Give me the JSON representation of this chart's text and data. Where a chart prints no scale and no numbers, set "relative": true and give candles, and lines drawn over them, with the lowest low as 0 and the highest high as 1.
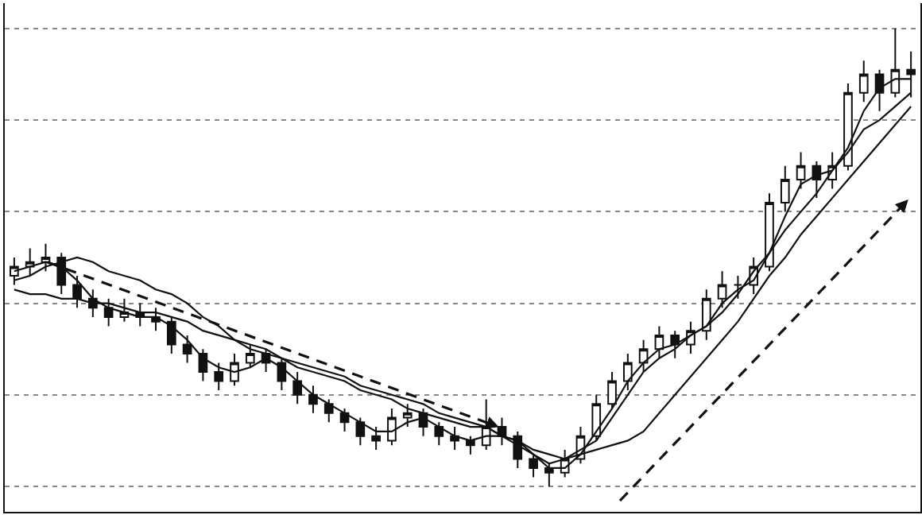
{
  "chart_data": {
    "type": "candlestick",
    "relative": true,
    "grid": "y",
    "categories": [
      null,
      null,
      null,
      null,
      null,
      null,
      null,
      null,
      null,
      null,
      null,
      null,
      null,
      null,
      null,
      null,
      null,
      null,
      null,
      null,
      null,
      null,
      null,
      null,
      null,
      null,
      null,
      null,
      null,
      null,
      null,
      null,
      null,
      null,
      null,
      null,
      null,
      null,
      null,
      null,
      null,
      null,
      null,
      null,
      null,
      null,
      null,
      null,
      null,
      null,
      null,
      null,
      null,
      null,
      null,
      null,
      null,
      null
    ],
    "ohlc": [
      [
        0.46,
        0.5,
        0.44,
        0.48
      ],
      [
        0.48,
        0.52,
        0.46,
        0.49
      ],
      [
        0.49,
        0.53,
        0.47,
        0.5
      ],
      [
        0.5,
        0.51,
        0.42,
        0.44
      ],
      [
        0.44,
        0.46,
        0.39,
        0.41
      ],
      [
        0.41,
        0.43,
        0.37,
        0.39
      ],
      [
        0.39,
        0.41,
        0.35,
        0.37
      ],
      [
        0.37,
        0.41,
        0.36,
        0.38
      ],
      [
        0.38,
        0.4,
        0.35,
        0.37
      ],
      [
        0.37,
        0.39,
        0.34,
        0.36
      ],
      [
        0.36,
        0.37,
        0.29,
        0.31
      ],
      [
        0.31,
        0.33,
        0.27,
        0.29
      ],
      [
        0.29,
        0.3,
        0.23,
        0.25
      ],
      [
        0.25,
        0.27,
        0.21,
        0.23
      ],
      [
        0.23,
        0.29,
        0.22,
        0.27
      ],
      [
        0.27,
        0.31,
        0.26,
        0.29
      ],
      [
        0.29,
        0.3,
        0.25,
        0.27
      ],
      [
        0.27,
        0.28,
        0.21,
        0.23
      ],
      [
        0.23,
        0.25,
        0.18,
        0.2
      ],
      [
        0.2,
        0.22,
        0.16,
        0.18
      ],
      [
        0.18,
        0.19,
        0.14,
        0.16
      ],
      [
        0.16,
        0.17,
        0.12,
        0.14
      ],
      [
        0.14,
        0.15,
        0.09,
        0.11
      ],
      [
        0.11,
        0.13,
        0.08,
        0.1
      ],
      [
        0.1,
        0.17,
        0.09,
        0.15
      ],
      [
        0.15,
        0.18,
        0.13,
        0.16
      ],
      [
        0.16,
        0.17,
        0.11,
        0.13
      ],
      [
        0.13,
        0.14,
        0.09,
        0.11
      ],
      [
        0.11,
        0.13,
        0.08,
        0.1
      ],
      [
        0.1,
        0.11,
        0.07,
        0.09
      ],
      [
        0.09,
        0.19,
        0.08,
        0.13
      ],
      [
        0.13,
        0.15,
        0.09,
        0.11
      ],
      [
        0.11,
        0.12,
        0.04,
        0.06
      ],
      [
        0.06,
        0.07,
        0.02,
        0.04
      ],
      [
        0.04,
        0.05,
        0.0,
        0.03
      ],
      [
        0.03,
        0.08,
        0.02,
        0.06
      ],
      [
        0.06,
        0.13,
        0.05,
        0.11
      ],
      [
        0.11,
        0.2,
        0.1,
        0.18
      ],
      [
        0.18,
        0.25,
        0.17,
        0.23
      ],
      [
        0.23,
        0.29,
        0.21,
        0.27
      ],
      [
        0.27,
        0.32,
        0.25,
        0.3
      ],
      [
        0.3,
        0.35,
        0.28,
        0.33
      ],
      [
        0.33,
        0.34,
        0.28,
        0.31
      ],
      [
        0.31,
        0.36,
        0.29,
        0.34
      ],
      [
        0.34,
        0.43,
        0.32,
        0.41
      ],
      [
        0.41,
        0.47,
        0.39,
        0.44
      ],
      [
        0.44,
        0.46,
        0.41,
        0.44
      ],
      [
        0.44,
        0.5,
        0.42,
        0.48
      ],
      [
        0.48,
        0.64,
        0.47,
        0.62
      ],
      [
        0.62,
        0.7,
        0.6,
        0.67
      ],
      [
        0.67,
        0.73,
        0.65,
        0.7
      ],
      [
        0.7,
        0.71,
        0.63,
        0.67
      ],
      [
        0.67,
        0.73,
        0.65,
        0.7
      ],
      [
        0.7,
        0.88,
        0.69,
        0.86
      ],
      [
        0.86,
        0.93,
        0.84,
        0.9
      ],
      [
        0.9,
        0.91,
        0.82,
        0.86
      ],
      [
        0.86,
        1.0,
        0.85,
        0.91
      ],
      [
        0.91,
        0.95,
        0.85,
        0.9
      ]
    ],
    "series": [
      {
        "type": "line",
        "color": "#111111",
        "values": [
          0.47,
          0.48,
          0.49,
          0.48,
          0.45,
          0.41,
          0.39,
          0.38,
          0.37,
          0.37,
          0.35,
          0.32,
          0.28,
          0.26,
          0.25,
          0.26,
          0.28,
          0.26,
          0.23,
          0.2,
          0.18,
          0.16,
          0.14,
          0.12,
          0.12,
          0.14,
          0.15,
          0.13,
          0.11,
          0.1,
          0.11,
          0.11,
          0.1,
          0.07,
          0.04,
          0.04,
          0.07,
          0.12,
          0.17,
          0.23,
          0.27,
          0.3,
          0.31,
          0.33,
          0.35,
          0.4,
          0.43,
          0.45,
          0.51,
          0.59,
          0.66,
          0.68,
          0.69,
          0.74,
          0.82,
          0.87,
          0.89,
          0.89
        ]
      },
      {
        "type": "line",
        "color": "#111111",
        "values": [
          0.45,
          0.46,
          0.48,
          0.49,
          0.5,
          0.49,
          0.47,
          0.46,
          0.45,
          0.43,
          0.42,
          0.4,
          0.37,
          0.35,
          0.32,
          0.3,
          0.29,
          0.28,
          0.26,
          0.25,
          0.24,
          0.23,
          0.21,
          0.2,
          0.19,
          0.17,
          0.16,
          0.15,
          0.14,
          0.13,
          0.13,
          0.11,
          0.09,
          0.07,
          0.05,
          0.06,
          0.08,
          0.1,
          0.15,
          0.2,
          0.25,
          0.28,
          0.3,
          0.33,
          0.35,
          0.38,
          0.42,
          0.47,
          0.51,
          0.56,
          0.6,
          0.64,
          0.69,
          0.73,
          0.78,
          0.8,
          0.83,
          0.86
        ]
      },
      {
        "type": "line",
        "color": "#111111",
        "values": [
          0.43,
          0.42,
          0.42,
          0.41,
          0.41,
          0.4,
          0.4,
          0.39,
          0.38,
          0.38,
          0.37,
          0.36,
          0.34,
          0.33,
          0.32,
          0.31,
          0.3,
          0.28,
          0.27,
          0.26,
          0.25,
          0.24,
          0.22,
          0.21,
          0.2,
          0.19,
          0.18,
          0.16,
          0.15,
          0.14,
          0.13,
          0.11,
          0.1,
          0.08,
          0.07,
          0.06,
          0.07,
          0.08,
          0.09,
          0.1,
          0.12,
          0.16,
          0.2,
          0.24,
          0.28,
          0.32,
          0.36,
          0.41,
          0.46,
          0.5,
          0.55,
          0.59,
          0.63,
          0.67,
          0.71,
          0.75,
          0.79,
          0.83
        ]
      }
    ]
  }
}
